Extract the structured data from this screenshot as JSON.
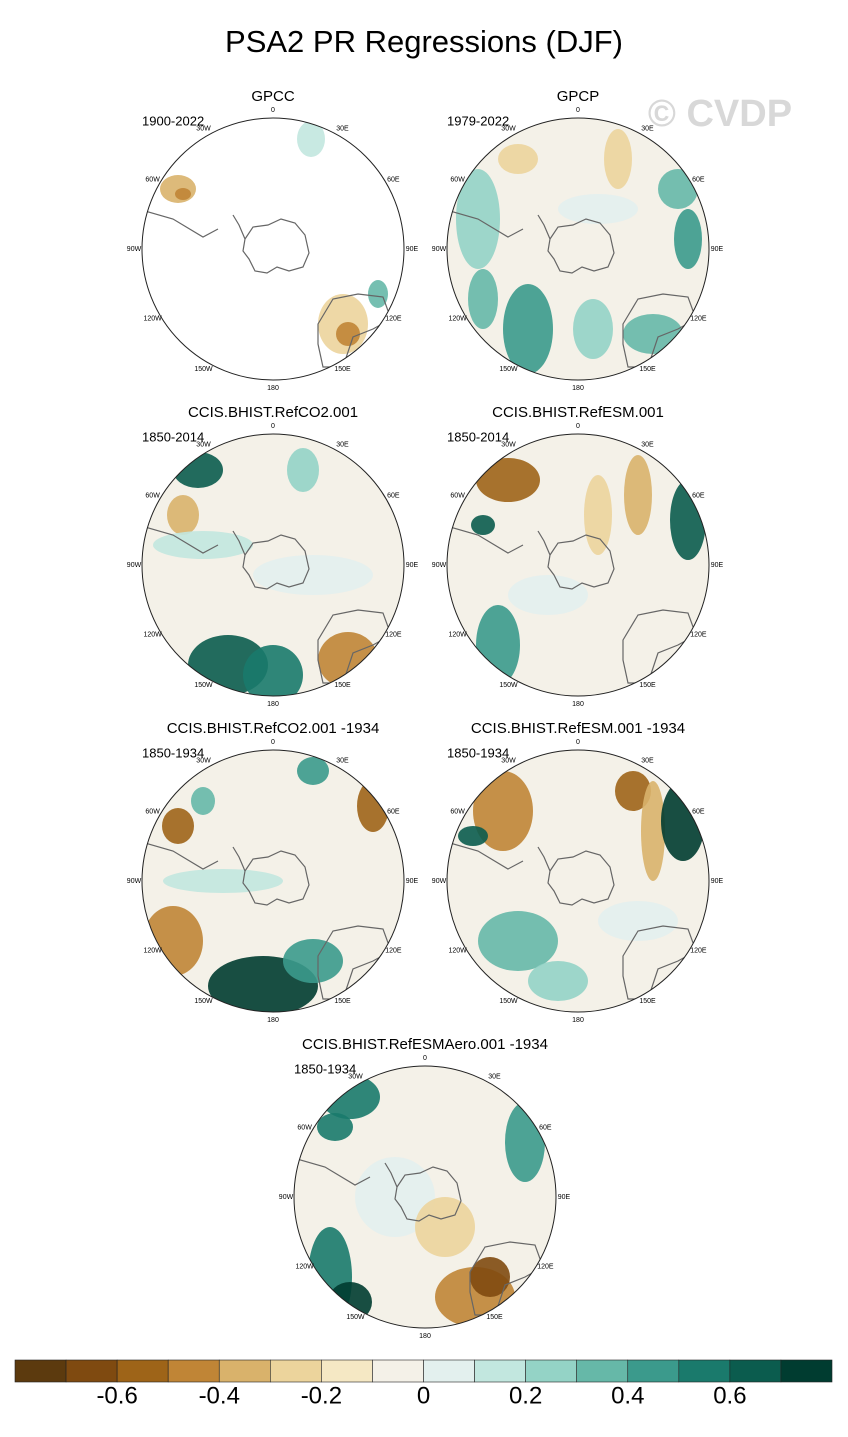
{
  "title": "PSA2 PR Regressions (DJF)",
  "watermark": "© CVDP",
  "longitude_labels": [
    "0",
    "30E",
    "60E",
    "90E",
    "120E",
    "150E",
    "180",
    "150W",
    "120W",
    "90W",
    "60W",
    "30W"
  ],
  "panels": [
    {
      "title": "GPCC",
      "period": "1900-2022"
    },
    {
      "title": "GPCP",
      "period": "1979-2022"
    },
    {
      "title": "CCIS.BHIST.RefCO2.001",
      "period": "1850-2014"
    },
    {
      "title": "CCIS.BHIST.RefESM.001",
      "period": "1850-2014"
    },
    {
      "title": "CCIS.BHIST.RefCO2.001 -1934",
      "period": "1850-1934"
    },
    {
      "title": "CCIS.BHIST.RefESM.001 -1934",
      "period": "1850-1934"
    },
    {
      "title": "CCIS.BHIST.RefESMAero.001 -1934",
      "period": "1850-1934"
    }
  ],
  "colorbar": {
    "lim": [
      -0.8,
      0.8
    ],
    "ticks": [
      -0.6,
      -0.4,
      -0.2,
      0,
      0.2,
      0.4,
      0.6
    ],
    "colors": [
      "#5c3a0e",
      "#7f4a10",
      "#9e6418",
      "#c08536",
      "#d9b26b",
      "#ecd49c",
      "#f5e8c4",
      "#f4f1e8",
      "#e3f0ee",
      "#c2e7df",
      "#94d3c6",
      "#66b8a8",
      "#3b9a8c",
      "#1a7a6c",
      "#0b5c4e",
      "#003c30"
    ]
  }
}
